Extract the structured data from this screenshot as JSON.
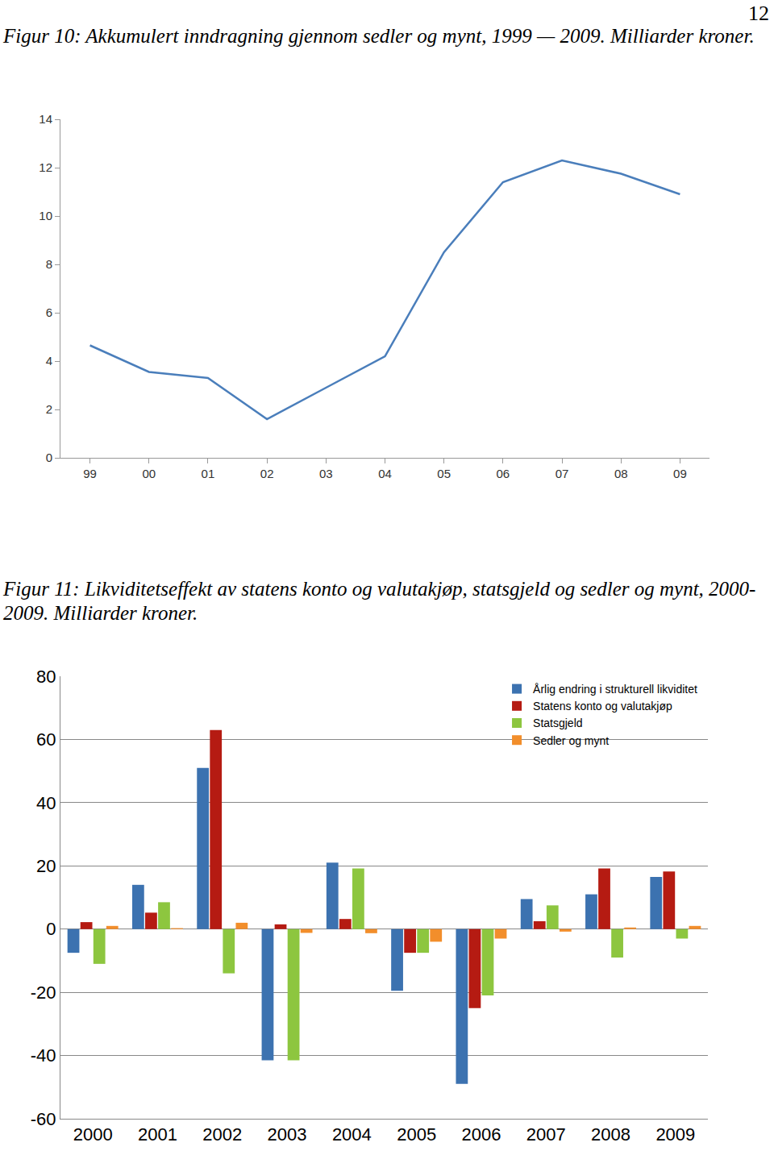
{
  "page_number": "12",
  "chart_data": [
    {
      "type": "line",
      "title": "Figur 10: Akkumulert inndragning gjennom sedler og mynt, 1999 — 2009. Milliarder kroner.",
      "categories": [
        "99",
        "00",
        "01",
        "02",
        "03",
        "04",
        "05",
        "06",
        "07",
        "08",
        "09"
      ],
      "values": [
        4.65,
        3.55,
        3.3,
        1.6,
        2.9,
        4.2,
        8.5,
        11.4,
        12.3,
        11.75,
        10.9
      ],
      "color": "#4a7ebb",
      "ylim": [
        0,
        14
      ],
      "yticks": [
        0,
        2,
        4,
        6,
        8,
        10,
        12,
        14
      ],
      "grid": false
    },
    {
      "type": "bar",
      "title": "Figur 11: Likviditetseffekt av statens konto og valutakjøp, statsgjeld og sedler og mynt, 2000-2009. Milliarder kroner.",
      "categories": [
        "2000",
        "2001",
        "2002",
        "2003",
        "2004",
        "2005",
        "2006",
        "2007",
        "2008",
        "2009"
      ],
      "series": [
        {
          "name": "Årlig endring i strukturell likviditet",
          "color": "#3c72b0",
          "values": [
            -7.5,
            14,
            51,
            -41.5,
            21,
            -19.5,
            -49,
            9.5,
            11,
            16.5
          ]
        },
        {
          "name": "Statens konto og valutakjøp",
          "color": "#b51b12",
          "values": [
            2.2,
            5.2,
            63,
            1.5,
            3.2,
            -7.5,
            -25,
            2.5,
            19.2,
            18.2
          ]
        },
        {
          "name": "Statsgjeld",
          "color": "#8dc63f",
          "values": [
            -11,
            8.5,
            -14,
            -41.5,
            19.2,
            -7.5,
            -21,
            7.5,
            -9,
            -3
          ]
        },
        {
          "name": "Sedler og mynt",
          "color": "#f28e2b",
          "values": [
            1,
            0.3,
            2,
            -1.2,
            -1.3,
            -4,
            -3,
            -0.8,
            0.5,
            1
          ]
        }
      ],
      "ylim": [
        -60,
        80
      ],
      "yticks": [
        -60,
        -40,
        -20,
        0,
        20,
        40,
        60,
        80
      ],
      "grid": true,
      "legend": "top right"
    }
  ]
}
